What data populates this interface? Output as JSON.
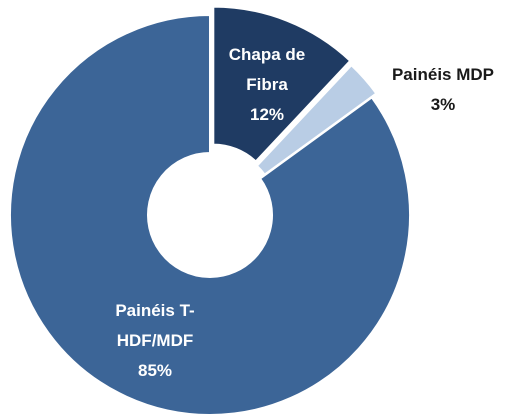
{
  "chart_data": {
    "type": "donut",
    "categories": [
      "Chapa de Fibra",
      "Painéis MDP",
      "Painéis T-HDF/MDF"
    ],
    "values": [
      12,
      3,
      85
    ],
    "value_labels": [
      "12%",
      "3%",
      "85%"
    ],
    "colors": [
      "#1f3b63",
      "#b9cde5",
      "#3c6597"
    ],
    "label_colors": [
      "#ffffff",
      "#1a1a1a",
      "#ffffff"
    ]
  }
}
